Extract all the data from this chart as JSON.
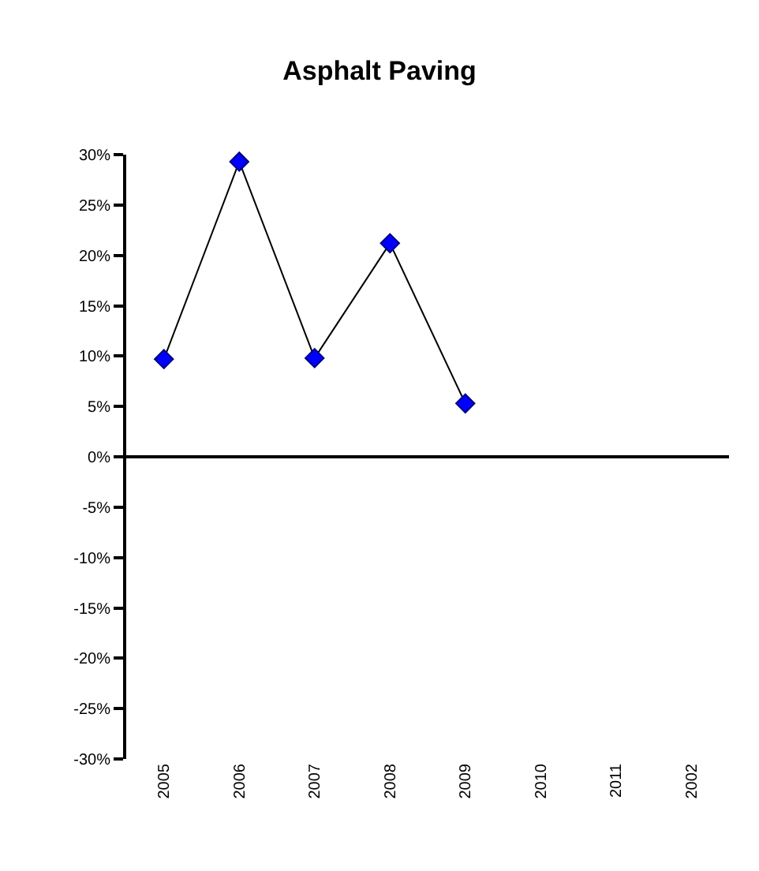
{
  "chart_data": {
    "type": "line",
    "title": "Asphalt Paving",
    "categories": [
      "2005",
      "2006",
      "2007",
      "2008",
      "2009",
      "2010",
      "2011",
      "2002"
    ],
    "series": [
      {
        "color": "#0000ff",
        "values": [
          9.7,
          29.3,
          9.8,
          21.2,
          5.3,
          null,
          null,
          null
        ]
      }
    ],
    "ylim": [
      -30,
      30
    ],
    "yticks": [
      {
        "value": -30,
        "label": "-30%"
      },
      {
        "value": -25,
        "label": "-25%"
      },
      {
        "value": -20,
        "label": "-20%"
      },
      {
        "value": -15,
        "label": "-15%"
      },
      {
        "value": -10,
        "label": "-10%"
      },
      {
        "value": -5,
        "label": "-5%"
      },
      {
        "value": 0,
        "label": "0%"
      },
      {
        "value": 5,
        "label": "5%"
      },
      {
        "value": 10,
        "label": "10%"
      },
      {
        "value": 15,
        "label": "15%"
      },
      {
        "value": 20,
        "label": "20%"
      },
      {
        "value": 25,
        "label": "25%"
      },
      {
        "value": 30,
        "label": "30%"
      }
    ],
    "marker": "diamond",
    "line_style": "solid",
    "legend": false
  }
}
